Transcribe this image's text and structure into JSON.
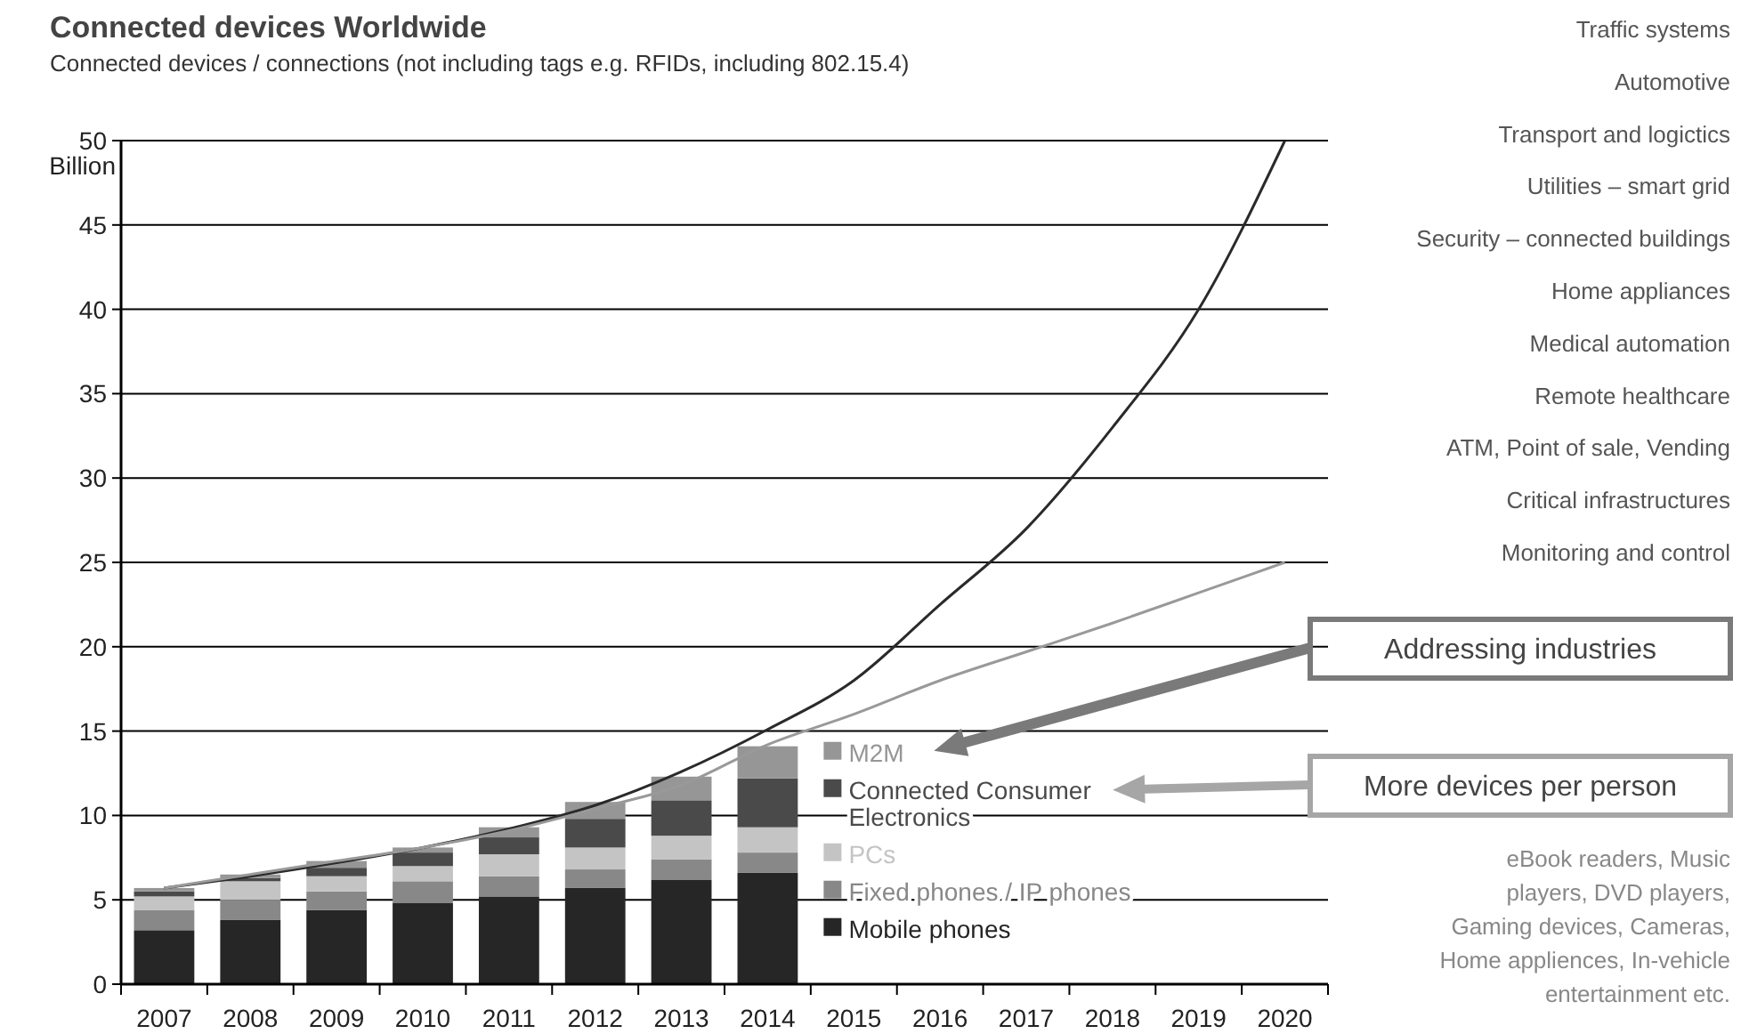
{
  "chart_data": {
    "type": "bar",
    "stacked": true,
    "title": "Connected devices Worldwide",
    "subtitle": "Connected devices / connections  (not including tags e.g. RFIDs, including 802.15.4)",
    "ylabel": "Billion",
    "categories": [
      "2007",
      "2008",
      "2009",
      "2010",
      "2011",
      "2012",
      "2013",
      "2014",
      "2015",
      "2016",
      "2017",
      "2018",
      "2019",
      "2020"
    ],
    "series": [
      {
        "name": "Mobile phones",
        "color": "#262626",
        "values": [
          3.2,
          3.8,
          4.4,
          4.8,
          5.2,
          5.7,
          6.2,
          6.6,
          null,
          null,
          null,
          null,
          null,
          null
        ]
      },
      {
        "name": "Fixed phones / IP phones",
        "color": "#888888",
        "values": [
          1.2,
          1.2,
          1.1,
          1.3,
          1.2,
          1.1,
          1.2,
          1.2,
          null,
          null,
          null,
          null,
          null,
          null
        ]
      },
      {
        "name": "PCs",
        "color": "#c4c4c4",
        "values": [
          0.8,
          1.1,
          0.9,
          0.9,
          1.3,
          1.3,
          1.4,
          1.5,
          null,
          null,
          null,
          null,
          null,
          null
        ]
      },
      {
        "name": "Connected Consumer Electronics",
        "color": "#4a4a4a",
        "values": [
          0.3,
          0.2,
          0.5,
          0.8,
          1.0,
          1.7,
          2.1,
          2.9,
          null,
          null,
          null,
          null,
          null,
          null
        ]
      },
      {
        "name": "M2M",
        "color": "#969696",
        "values": [
          0.2,
          0.2,
          0.4,
          0.3,
          0.6,
          1.0,
          1.4,
          1.9,
          null,
          null,
          null,
          null,
          null,
          null
        ]
      },
      {
        "type": "line",
        "color": "#2a2a2a",
        "values": [
          5.7,
          6.4,
          7.2,
          8.1,
          9.2,
          10.6,
          12.6,
          15.1,
          18,
          22.5,
          27,
          33,
          40,
          50
        ]
      },
      {
        "type": "line",
        "color": "#999999",
        "values": [
          5.7,
          6.5,
          7.3,
          8.1,
          9.1,
          10.4,
          11.8,
          14.2,
          16,
          18,
          19.7,
          21.4,
          23.2,
          25
        ]
      }
    ],
    "ylim": [
      0,
      50
    ],
    "yticks": [
      0,
      5,
      10,
      15,
      20,
      25,
      30,
      35,
      40,
      45,
      50
    ],
    "grid": "y",
    "legend": "right",
    "marker": "none",
    "line_style": "solid",
    "annotations": [
      "Traffic systems",
      "Automotive",
      "Transport and logictics",
      "Utilities – smart grid",
      "Security – connected buildings",
      "Home appliances",
      "Medical automation",
      "Remote healthcare",
      "ATM, Point of sale, Vending",
      "Critical infrastructures",
      "Monitoring and control",
      "Addressing industries",
      "More devices per person",
      "eBook readers, Music\nplayers, DVD players,\nGaming devices, Cameras,\nHome appliences, In-vehicle\nentertainment etc."
    ]
  }
}
